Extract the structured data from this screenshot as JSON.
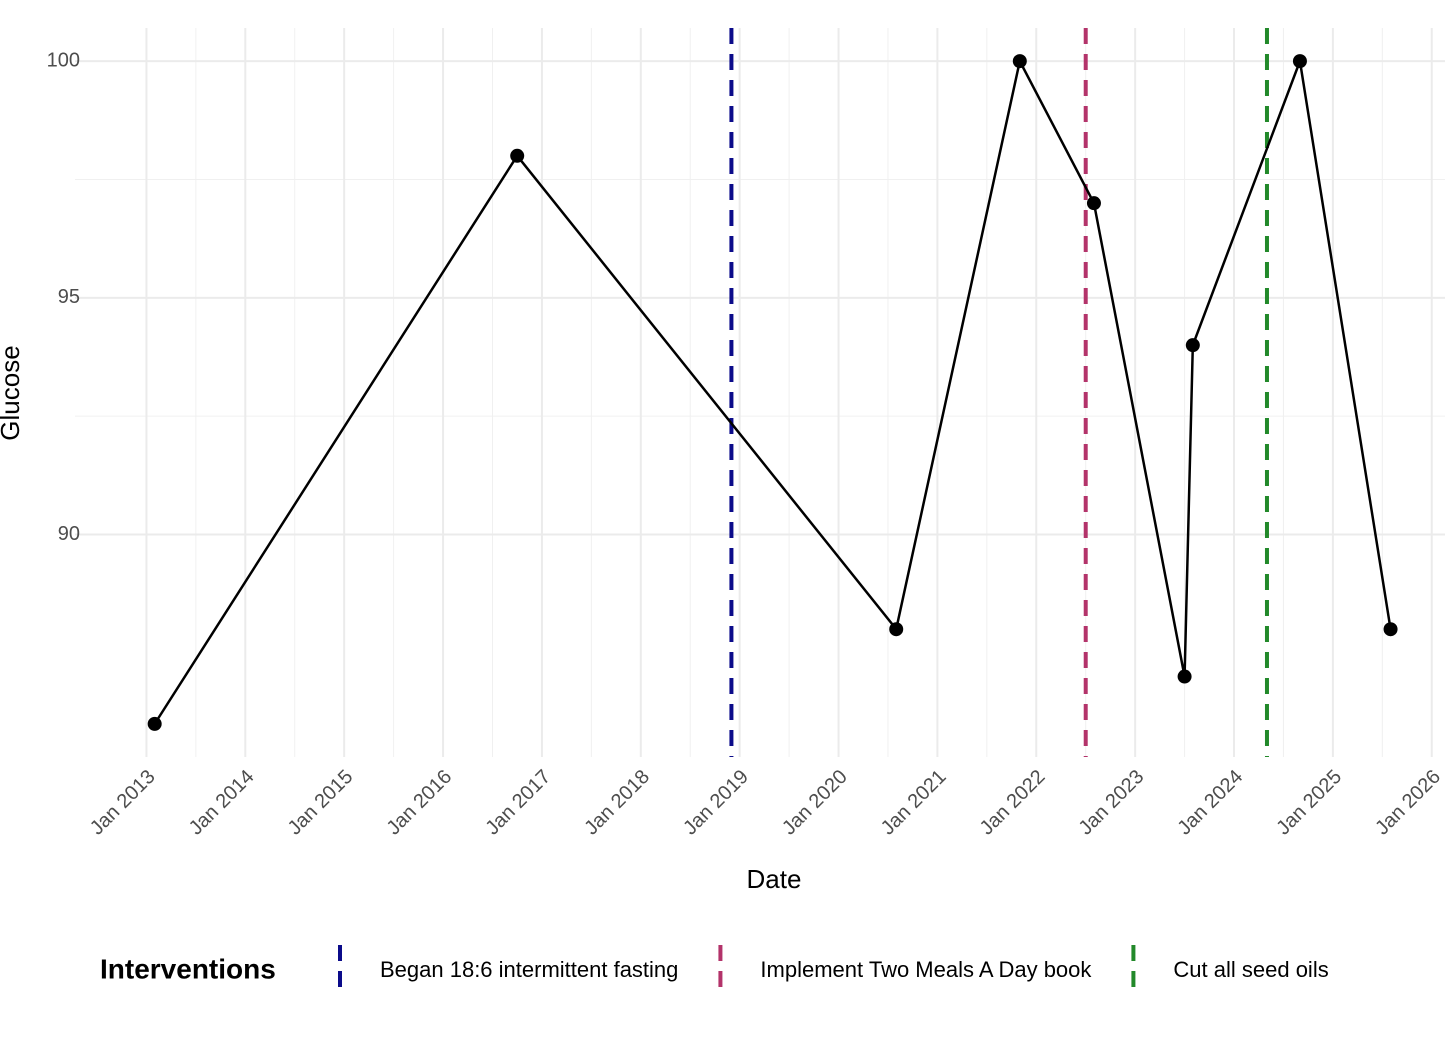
{
  "chart_data": {
    "type": "line",
    "x_label": "Date",
    "y_label": "Glucose",
    "x": [
      "2013-02",
      "2016-10",
      "2020-08",
      "2021-11",
      "2022-08",
      "2023-07",
      "2023-08",
      "2024-09",
      "2025-08"
    ],
    "values": [
      86,
      98,
      88,
      100,
      97,
      87,
      94,
      100,
      88
    ],
    "color": "#000000",
    "xlim": [
      "2012-07",
      "2026-02"
    ],
    "xticks": [
      {
        "value": "2013-01",
        "label": "Jan 2013"
      },
      {
        "value": "2014-01",
        "label": "Jan 2014"
      },
      {
        "value": "2015-01",
        "label": "Jan 2015"
      },
      {
        "value": "2016-01",
        "label": "Jan 2016"
      },
      {
        "value": "2017-01",
        "label": "Jan 2017"
      },
      {
        "value": "2018-01",
        "label": "Jan 2018"
      },
      {
        "value": "2019-01",
        "label": "Jan 2019"
      },
      {
        "value": "2020-01",
        "label": "Jan 2020"
      },
      {
        "value": "2021-01",
        "label": "Jan 2021"
      },
      {
        "value": "2022-01",
        "label": "Jan 2022"
      },
      {
        "value": "2023-01",
        "label": "Jan 2023"
      },
      {
        "value": "2024-01",
        "label": "Jan 2024"
      },
      {
        "value": "2025-01",
        "label": "Jan 2025"
      },
      {
        "value": "2026-01",
        "label": "Jan 2026"
      }
    ],
    "ylim": [
      85.3,
      100.7
    ],
    "yticks": [
      90,
      95,
      100
    ],
    "grid": true,
    "legend_title": "Interventions",
    "vlines": [
      {
        "x": "2018-12",
        "label": "Began 18:6 intermittent fasting",
        "color": "#0b0b8a"
      },
      {
        "x": "2022-07",
        "label": "Implement Two Meals A Day book",
        "color": "#b3336a"
      },
      {
        "x": "2024-05",
        "label": "Cut all seed oils",
        "color": "#22892a"
      }
    ]
  }
}
